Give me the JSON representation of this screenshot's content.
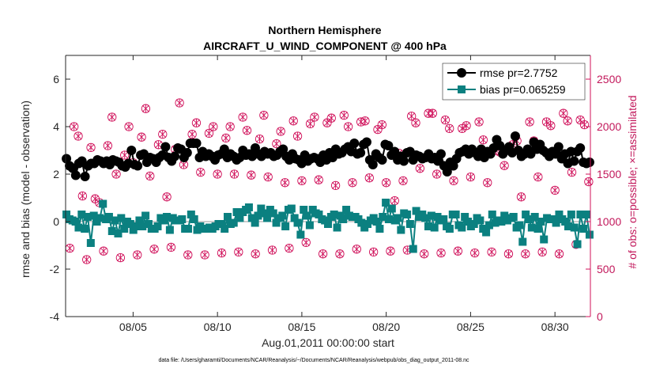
{
  "chart_data": {
    "type": "line",
    "title": "Northern Hemisphere",
    "subtitle": "AIRCRAFT_U_WIND_COMPONENT @ 400 hPa",
    "xlabel": "Aug.01,2011 00:00:00 start",
    "ylabel": "rmse and bias (model - observation)",
    "ylabel_right": "# of obs: o=possible; ×=assimilated",
    "footnote": "data file: /Users/gharamti/Documents/NCAR/Reanalysis/~/Documents/NCAR/Reanalysis/webpub/obs_diag_output_2011-08.nc",
    "xlim": [
      1.0,
      32.1
    ],
    "ylim": [
      -4,
      7
    ],
    "ylim_right": [
      0,
      2750
    ],
    "x_ticks": [
      5,
      10,
      15,
      20,
      25,
      30
    ],
    "x_tick_labels": [
      "08/05",
      "08/10",
      "08/15",
      "08/20",
      "08/25",
      "08/30"
    ],
    "y_ticks": [
      -4,
      -2,
      0,
      2,
      4,
      6
    ],
    "y_tick_labels": [
      "-4",
      "-2",
      "0",
      "2",
      "4",
      "6"
    ],
    "y_ticks_right": [
      0,
      500,
      1000,
      1500,
      2000,
      2500
    ],
    "y_tick_labels_right": [
      "0",
      "500",
      "1000",
      "1500",
      "2000",
      "2500"
    ],
    "legend_position": "top-right",
    "grid": false,
    "colors": {
      "rmse": "#000000",
      "bias": "#0b8080",
      "obs": "#d0105a",
      "zero_line": "#999999"
    },
    "series": [
      {
        "name": "rmse pr=2.7752",
        "axis": "left",
        "values": [
          2.65,
          2.35,
          2.25,
          1.95,
          2.45,
          2.55,
          1.9,
          2.35,
          2.45,
          2.45,
          2.6,
          2.55,
          2.45,
          2.55,
          2.4,
          2.6,
          2.55,
          2.5,
          2.35,
          2.3,
          2.45,
          3.0,
          2.4,
          2.35,
          2.8,
          2.85,
          2.5,
          2.7,
          2.65,
          2.5,
          2.7,
          2.8,
          3.15,
          2.7,
          2.55,
          2.75,
          3.1,
          3.05,
          2.7,
          2.9,
          3.3,
          3.3,
          3.3,
          2.7,
          2.95,
          2.75,
          2.85,
          2.75,
          2.6,
          2.8,
          2.85,
          3.05,
          2.7,
          2.85,
          2.75,
          2.6,
          2.7,
          3.0,
          2.8,
          2.85,
          2.75,
          3.1,
          2.85,
          2.75,
          2.95,
          2.85,
          2.9,
          2.75,
          2.8,
          2.95,
          3.05,
          2.75,
          2.6,
          2.85,
          2.65,
          2.6,
          2.45,
          2.8,
          2.55,
          2.65,
          2.7,
          2.65,
          2.5,
          2.8,
          2.6,
          2.9,
          2.7,
          3.05,
          2.85,
          2.9,
          3.05,
          3.15,
          2.95,
          3.3,
          2.85,
          2.9,
          3.25,
          3.35,
          2.6,
          2.4,
          2.85,
          2.7,
          2.6,
          3.25,
          3.2,
          2.8,
          2.95,
          2.6,
          2.75,
          2.55,
          2.9,
          2.95,
          2.6,
          2.8,
          2.75,
          2.65,
          2.7,
          2.85,
          2.65,
          2.7,
          2.55,
          2.85,
          2.35,
          2.1,
          2.5,
          2.35,
          2.65,
          2.9,
          2.95,
          3.05,
          2.85,
          3.05,
          2.9,
          2.75,
          3.05,
          2.7,
          2.95,
          2.85,
          3.1,
          3.45,
          3.2,
          2.85,
          3.0,
          3.15,
          2.9,
          3.6,
          3.0,
          2.75,
          2.85,
          3.05,
          2.85,
          3.35,
          3.05,
          3.25,
          3.0,
          2.9,
          2.75,
          2.95,
          2.85,
          3.15,
          2.65,
          2.85,
          2.45,
          2.95,
          2.55,
          2.95,
          3.1,
          2.5,
          2.45,
          2.5
        ]
      },
      {
        "name": "bias pr=0.065259",
        "axis": "left",
        "values": [
          0.3,
          0.1,
          0.05,
          0.0,
          -0.25,
          0.3,
          -0.3,
          0.2,
          -0.9,
          0.25,
          0.0,
          0.15,
          0.75,
          0.1,
          0.2,
          -0.4,
          0.05,
          -0.5,
          0.15,
          -0.3,
          0.0,
          -0.1,
          -0.35,
          -0.2,
          0.05,
          -0.2,
          0.25,
          -0.1,
          -0.3,
          -0.3,
          -0.2,
          0.15,
          0.05,
          0.2,
          -0.35,
          0.15,
          0.05,
          0.05,
          0.1,
          -0.3,
          -0.3,
          0.3,
          0.1,
          -0.35,
          -0.2,
          -0.3,
          -0.3,
          -0.25,
          -0.3,
          -0.2,
          -0.1,
          -0.1,
          -0.3,
          0.2,
          -0.1,
          -0.05,
          0.4,
          0.15,
          0.4,
          0.5,
          0.6,
          0.15,
          -0.05,
          0.25,
          0.55,
          0.35,
          0.15,
          0.5,
          0.35,
          -0.05,
          0.15,
          0.25,
          -0.2,
          0.5,
          0.55,
          0.15,
          -0.05,
          -0.55,
          0.5,
          0.25,
          -0.15,
          0.5,
          0.35,
          0.3,
          0.1,
          0.05,
          -0.1,
          0.2,
          0.3,
          -0.25,
          0.25,
          0.1,
          0.5,
          0.25,
          0.2,
          0.2,
          0.1,
          -0.05,
          -0.25,
          -0.1,
          0.05,
          0.15,
          0.0,
          -0.3,
          0.2,
          0.8,
          0.1,
          0.55,
          0.05,
          0.15,
          -0.35,
          0.35,
          0.3,
          -0.1,
          -1.15,
          0.45,
          0.2,
          0.3,
          0.15,
          -0.2,
          0.25,
          -0.25,
          0.2,
          0.05,
          0.1,
          -0.2,
          -0.3,
          0.3,
          0.3,
          -0.15,
          -0.25,
          0.2,
          0.0,
          -0.2,
          -0.1,
          0.15,
          0.05,
          -0.3,
          -0.45,
          -0.15,
          0.3,
          -0.05,
          0.05,
          0.0,
          0.25,
          0.05,
          0.15,
          0.2,
          -0.25,
          -0.15,
          -0.85,
          0.3,
          0.1,
          -0.25,
          0.2,
          -0.3,
          0.0,
          -0.75,
          0.15,
          0.1,
          0.1,
          -0.05,
          0.3,
          0.1,
          0.0,
          -0.2,
          0.3,
          -0.25,
          -0.95,
          0.3,
          -0.3,
          0.3,
          -0.55
        ]
      },
      {
        "name": "# of obs",
        "axis": "right",
        "kind": "markers",
        "points": [
          [
            1.25,
            720
          ],
          [
            1.5,
            2000
          ],
          [
            1.75,
            1900
          ],
          [
            2.0,
            1270
          ],
          [
            2.25,
            600
          ],
          [
            2.5,
            1780
          ],
          [
            2.75,
            1240
          ],
          [
            3.0,
            1200
          ],
          [
            3.25,
            690
          ],
          [
            3.5,
            1800
          ],
          [
            3.75,
            2100
          ],
          [
            4.0,
            1500
          ],
          [
            4.25,
            620
          ],
          [
            4.5,
            1700
          ],
          [
            4.75,
            2000
          ],
          [
            5.0,
            1620
          ],
          [
            5.25,
            650
          ],
          [
            5.5,
            1890
          ],
          [
            5.75,
            2190
          ],
          [
            6.0,
            1480
          ],
          [
            6.25,
            710
          ],
          [
            6.5,
            1810
          ],
          [
            6.75,
            1920
          ],
          [
            7.0,
            1260
          ],
          [
            7.25,
            730
          ],
          [
            7.5,
            1760
          ],
          [
            7.75,
            2250
          ],
          [
            8.0,
            1600
          ],
          [
            8.25,
            650
          ],
          [
            8.5,
            1920
          ],
          [
            8.75,
            2040
          ],
          [
            9.0,
            1520
          ],
          [
            9.25,
            650
          ],
          [
            9.5,
            1930
          ],
          [
            9.75,
            2000
          ],
          [
            10.0,
            1500
          ],
          [
            10.25,
            670
          ],
          [
            10.5,
            1880
          ],
          [
            10.75,
            2000
          ],
          [
            11.0,
            1500
          ],
          [
            11.25,
            680
          ],
          [
            11.5,
            2100
          ],
          [
            11.75,
            1960
          ],
          [
            12.0,
            1490
          ],
          [
            12.25,
            660
          ],
          [
            12.5,
            1870
          ],
          [
            12.75,
            2120
          ],
          [
            13.0,
            1470
          ],
          [
            13.25,
            700
          ],
          [
            13.5,
            1820
          ],
          [
            13.75,
            1950
          ],
          [
            14.0,
            1410
          ],
          [
            14.25,
            720
          ],
          [
            14.5,
            2060
          ],
          [
            14.75,
            1900
          ],
          [
            15.0,
            1430
          ],
          [
            15.25,
            780
          ],
          [
            15.5,
            2030
          ],
          [
            15.75,
            2100
          ],
          [
            16.0,
            1440
          ],
          [
            16.25,
            660
          ],
          [
            16.5,
            2040
          ],
          [
            16.75,
            2090
          ],
          [
            17.0,
            1380
          ],
          [
            17.25,
            660
          ],
          [
            17.5,
            2120
          ],
          [
            17.75,
            2000
          ],
          [
            18.0,
            1410
          ],
          [
            18.25,
            710
          ],
          [
            18.5,
            2050
          ],
          [
            18.75,
            2060
          ],
          [
            19.0,
            1460
          ],
          [
            19.25,
            680
          ],
          [
            19.5,
            1970
          ],
          [
            19.75,
            2020
          ],
          [
            20.0,
            1410
          ],
          [
            20.25,
            690
          ],
          [
            20.5,
            1220
          ],
          [
            20.75,
            1720
          ],
          [
            21.0,
            1430
          ],
          [
            21.25,
            700
          ],
          [
            21.5,
            2110
          ],
          [
            21.75,
            2040
          ],
          [
            22.0,
            1560
          ],
          [
            22.25,
            660
          ],
          [
            22.5,
            2140
          ],
          [
            22.75,
            2140
          ],
          [
            23.0,
            1500
          ],
          [
            23.25,
            670
          ],
          [
            23.5,
            2070
          ],
          [
            23.75,
            1980
          ],
          [
            24.0,
            1430
          ],
          [
            24.25,
            690
          ],
          [
            24.5,
            1980
          ],
          [
            24.75,
            2010
          ],
          [
            25.0,
            1470
          ],
          [
            25.25,
            670
          ],
          [
            25.5,
            2050
          ],
          [
            25.75,
            1860
          ],
          [
            26.0,
            1410
          ],
          [
            26.25,
            680
          ],
          [
            26.5,
            1750
          ],
          [
            26.75,
            1730
          ],
          [
            27.0,
            1590
          ],
          [
            27.25,
            660
          ],
          [
            27.5,
            1810
          ],
          [
            27.75,
            1850
          ],
          [
            28.0,
            1260
          ],
          [
            28.25,
            660
          ],
          [
            28.5,
            2050
          ],
          [
            28.75,
            1850
          ],
          [
            29.0,
            1470
          ],
          [
            29.25,
            680
          ],
          [
            29.5,
            2050
          ],
          [
            29.75,
            2010
          ],
          [
            30.0,
            1330
          ],
          [
            30.25,
            660
          ],
          [
            30.5,
            2140
          ],
          [
            30.75,
            2060
          ],
          [
            31.0,
            1520
          ],
          [
            31.25,
            760
          ],
          [
            31.5,
            2070
          ],
          [
            31.75,
            2020
          ],
          [
            32.0,
            1420
          ]
        ]
      }
    ]
  }
}
